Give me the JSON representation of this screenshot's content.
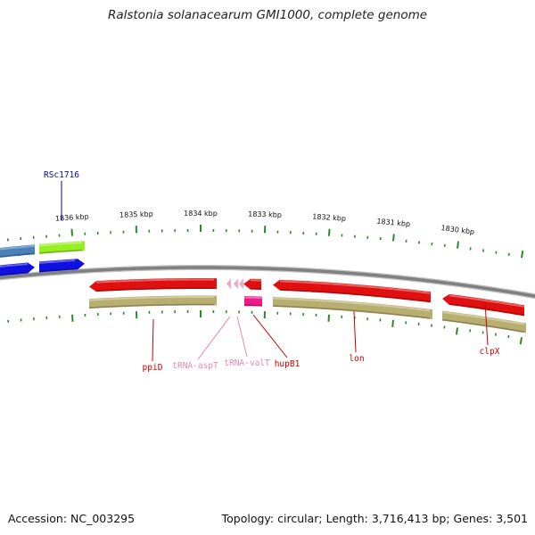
{
  "title": "Ralstonia solanacearum GMI1000, complete genome",
  "footer": {
    "accession": "Accession: NC_003295",
    "summary": "Topology: circular; Length: 3,716,413 bp; Genes: 3,501"
  },
  "colors": {
    "backbone": "#808080",
    "tick": "#2a8a2a",
    "cds_forward": "#1010e0",
    "cds_reverse": "#e01010",
    "gene_blue": "#4a7fb8",
    "gene_green": "#99ee22",
    "gene_olive": "#b8ae70",
    "trna": "#f4a8c8",
    "misc": "#ee1a8a",
    "label_blue": "#0a0a88",
    "label_red": "#cc0000",
    "label_pink": "#e888b0"
  },
  "scale_labels": [
    "1836 kbp",
    "1835 kbp",
    "1834 kbp",
    "1833 kbp",
    "1832 kbp",
    "1831 kbp",
    "1830 kbp"
  ],
  "gene_labels": [
    {
      "text": "RSc1716",
      "color_key": "label_blue"
    },
    {
      "text": "ppiD",
      "color_key": "label_red"
    },
    {
      "text": "tRNA-aspT",
      "color_key": "label_pink"
    },
    {
      "text": "tRNA-valT",
      "color_key": "label_pink"
    },
    {
      "text": "hupB1",
      "color_key": "label_red"
    },
    {
      "text": "lon",
      "color_key": "label_red"
    },
    {
      "text": "clpX",
      "color_key": "label_red"
    }
  ]
}
